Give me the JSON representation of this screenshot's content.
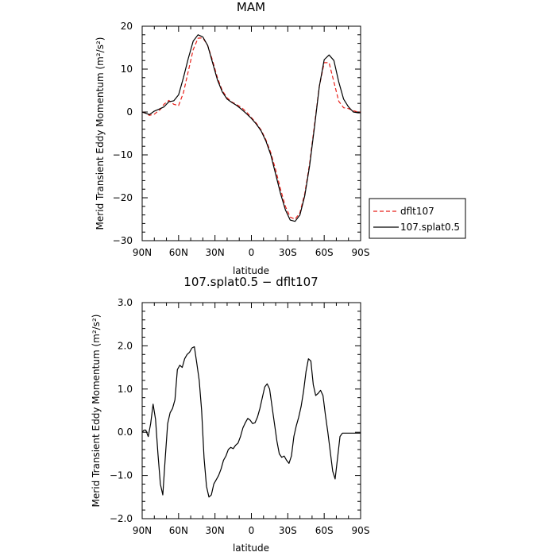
{
  "chart_data": [
    {
      "type": "line",
      "title": "MAM",
      "xlabel": "latitude",
      "ylabel": "Merid Transient Eddy Momentum (m²/s²)",
      "xlim": [
        90,
        -90
      ],
      "ylim": [
        -30,
        20
      ],
      "xticks": [
        {
          "value": 90,
          "label": "90N"
        },
        {
          "value": 60,
          "label": "60N"
        },
        {
          "value": 30,
          "label": "30N"
        },
        {
          "value": 0,
          "label": "0"
        },
        {
          "value": -30,
          "label": "30S"
        },
        {
          "value": -60,
          "label": "60S"
        },
        {
          "value": -90,
          "label": "90S"
        }
      ],
      "yticks": [
        {
          "value": 20,
          "label": "20"
        },
        {
          "value": 10,
          "label": "10"
        },
        {
          "value": 0,
          "label": "0"
        },
        {
          "value": -10,
          "label": "−10"
        },
        {
          "value": -20,
          "label": "−20"
        },
        {
          "value": -30,
          "label": "−30"
        }
      ],
      "grid": false,
      "legend_position": "right",
      "series": [
        {
          "name": "dflt107",
          "color": "#e8201a",
          "dash": "dashed",
          "x": [
            90,
            87,
            84,
            80,
            75,
            72,
            68,
            64,
            60,
            56,
            52,
            48,
            44,
            40,
            36,
            32,
            28,
            24,
            20,
            16,
            12,
            8,
            4,
            0,
            -4,
            -8,
            -12,
            -16,
            -20,
            -24,
            -28,
            -32,
            -36,
            -40,
            -44,
            -48,
            -52,
            -56,
            -60,
            -64,
            -68,
            -72,
            -76,
            -80,
            -84,
            -88,
            -90
          ],
          "y": [
            0.0,
            -0.3,
            -0.8,
            -0.5,
            0.6,
            1.8,
            2.7,
            1.8,
            1.5,
            4.5,
            9.5,
            14.5,
            17.2,
            17.3,
            15.5,
            12.0,
            8.0,
            5.0,
            3.3,
            2.3,
            1.7,
            1.0,
            0.0,
            -1.3,
            -2.6,
            -4.2,
            -6.5,
            -9.5,
            -13.5,
            -18.0,
            -22.0,
            -24.5,
            -25.0,
            -23.5,
            -19.0,
            -12.0,
            -3.0,
            6.0,
            11.5,
            11.5,
            7.0,
            2.5,
            1.0,
            0.8,
            0.3,
            0.0,
            0.0
          ]
        },
        {
          "name": "107.splat0.5",
          "color": "#000000",
          "dash": "solid",
          "x": [
            90,
            87,
            84,
            80,
            75,
            72,
            68,
            64,
            60,
            56,
            52,
            48,
            44,
            40,
            36,
            32,
            28,
            24,
            20,
            16,
            12,
            8,
            4,
            0,
            -4,
            -8,
            -12,
            -16,
            -20,
            -24,
            -28,
            -32,
            -36,
            -40,
            -44,
            -48,
            -52,
            -56,
            -60,
            -64,
            -68,
            -72,
            -76,
            -80,
            -84,
            -88,
            -90
          ],
          "y": [
            0.0,
            -0.3,
            -0.6,
            0.2,
            0.8,
            1.2,
            2.4,
            2.6,
            4.0,
            8.0,
            12.5,
            16.5,
            18.0,
            17.5,
            15.5,
            11.5,
            7.5,
            4.7,
            3.0,
            2.2,
            1.5,
            0.6,
            -0.4,
            -1.5,
            -2.8,
            -4.4,
            -6.8,
            -10.0,
            -14.5,
            -19.0,
            -22.8,
            -25.2,
            -25.5,
            -24.0,
            -19.5,
            -12.5,
            -3.5,
            6.0,
            12.2,
            13.3,
            12.0,
            7.0,
            3.0,
            1.2,
            0.0,
            -0.2,
            -0.2
          ]
        }
      ]
    },
    {
      "type": "line",
      "title": "107.splat0.5 − dflt107",
      "xlabel": "latitude",
      "ylabel": "Merid Transient Eddy Momentum (m²/s²)",
      "xlim": [
        90,
        -90
      ],
      "ylim": [
        -2.0,
        3.0
      ],
      "xticks": [
        {
          "value": 90,
          "label": "90N"
        },
        {
          "value": 60,
          "label": "60N"
        },
        {
          "value": 30,
          "label": "30N"
        },
        {
          "value": 0,
          "label": "0"
        },
        {
          "value": -30,
          "label": "30S"
        },
        {
          "value": -60,
          "label": "60S"
        },
        {
          "value": -90,
          "label": "90S"
        }
      ],
      "yticks": [
        {
          "value": 3.0,
          "label": "3.0"
        },
        {
          "value": 2.0,
          "label": "2.0"
        },
        {
          "value": 1.0,
          "label": "1.0"
        },
        {
          "value": 0.0,
          "label": "0.0"
        },
        {
          "value": -1.0,
          "label": "−1.0"
        },
        {
          "value": -2.0,
          "label": "−2.0"
        }
      ],
      "grid": false,
      "series": [
        {
          "color": "#000000",
          "dash": "solid",
          "x": [
            90,
            88.5,
            87,
            85,
            83,
            81,
            79,
            77,
            75,
            73,
            71,
            69,
            67,
            65,
            63,
            61,
            59,
            57,
            55,
            53,
            51,
            49,
            47,
            45,
            43,
            41,
            39,
            37,
            35,
            33,
            31,
            29,
            27,
            25,
            23,
            21,
            19,
            17,
            15,
            13,
            11,
            9,
            7,
            5,
            3,
            1,
            -1,
            -3,
            -5,
            -7,
            -9,
            -11,
            -13,
            -15,
            -17,
            -19,
            -21,
            -23,
            -25,
            -27,
            -29,
            -31,
            -33,
            -35,
            -37,
            -39,
            -41,
            -43,
            -45,
            -47,
            -49,
            -51,
            -53,
            -55,
            -57,
            -59,
            -61,
            -63,
            -65,
            -67,
            -69,
            -71,
            -73,
            -75,
            -77,
            -79,
            -81,
            -83,
            -85,
            -87,
            -89,
            -90
          ],
          "y": [
            0.0,
            0.05,
            0.05,
            -0.1,
            0.2,
            0.65,
            0.3,
            -0.5,
            -1.2,
            -1.45,
            -0.6,
            0.2,
            0.45,
            0.55,
            0.75,
            1.45,
            1.55,
            1.5,
            1.7,
            1.8,
            1.85,
            1.95,
            1.98,
            1.6,
            1.2,
            0.5,
            -0.6,
            -1.25,
            -1.5,
            -1.45,
            -1.2,
            -1.1,
            -1.0,
            -0.85,
            -0.65,
            -0.55,
            -0.4,
            -0.35,
            -0.38,
            -0.3,
            -0.25,
            -0.1,
            0.1,
            0.22,
            0.32,
            0.28,
            0.2,
            0.22,
            0.35,
            0.55,
            0.8,
            1.05,
            1.12,
            1.0,
            0.6,
            0.2,
            -0.2,
            -0.5,
            -0.58,
            -0.55,
            -0.65,
            -0.72,
            -0.55,
            -0.1,
            0.15,
            0.35,
            0.6,
            0.95,
            1.4,
            1.7,
            1.65,
            1.1,
            0.85,
            0.9,
            0.97,
            0.85,
            0.4,
            0.0,
            -0.45,
            -0.9,
            -1.08,
            -0.6,
            -0.1,
            -0.02,
            -0.02,
            -0.02,
            -0.02,
            -0.02,
            -0.02,
            -0.02,
            -0.02,
            -0.02
          ]
        }
      ]
    }
  ]
}
